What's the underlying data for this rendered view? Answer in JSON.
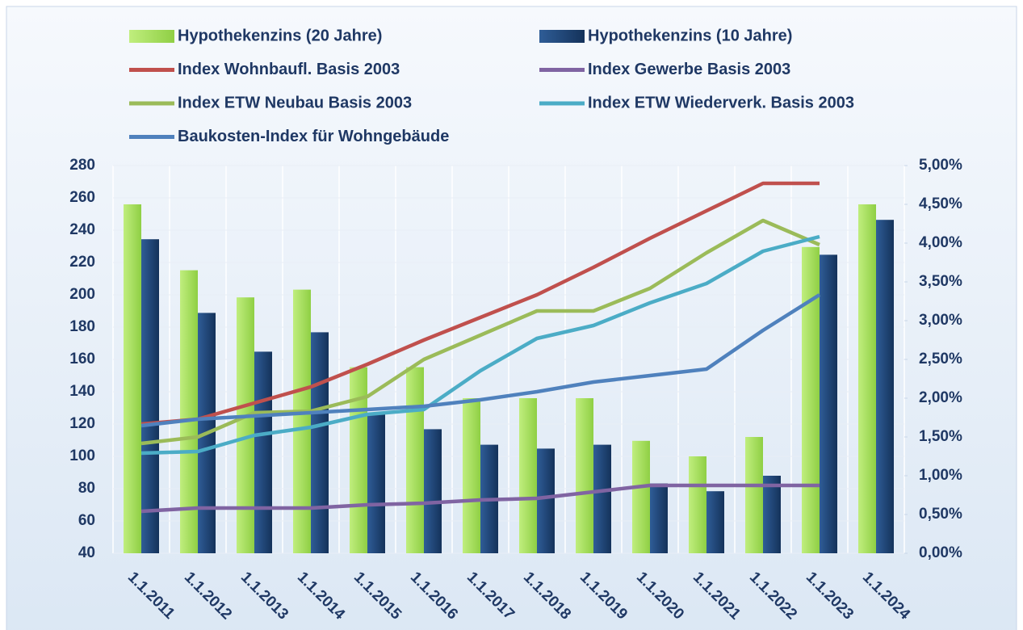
{
  "chart_data": {
    "type": "combo",
    "categories": [
      "1.1.2011",
      "1.1.2012",
      "1.1.2013",
      "1.1.2014",
      "1.1.2015",
      "1.1.2016",
      "1.1.2017",
      "1.1.2018",
      "1.1.2019",
      "1.1.2020",
      "1.1.2021",
      "1.1.2022",
      "1.1.2023",
      "1.1.2024"
    ],
    "series": [
      {
        "name": "Hypothekenzins (20 Jahre)",
        "type": "bar",
        "axis": "y2",
        "color": "#a2dc58",
        "values": [
          4.5,
          3.65,
          3.3,
          3.4,
          2.4,
          2.4,
          2.0,
          2.0,
          2.0,
          1.45,
          1.25,
          1.5,
          3.95,
          4.5
        ]
      },
      {
        "name": "Hypothekenzins (10 Jahre)",
        "type": "bar",
        "axis": "y2",
        "color": "#1f4478",
        "values": [
          4.05,
          3.1,
          2.6,
          2.85,
          1.8,
          1.6,
          1.4,
          1.35,
          1.4,
          0.9,
          0.8,
          1.0,
          3.85,
          4.3
        ]
      },
      {
        "name": "Index Wohnbaufl. Basis 2003",
        "type": "line",
        "color": "#c0504d",
        "values": [
          120,
          123,
          133,
          143,
          157,
          172,
          186,
          200,
          217,
          235,
          252,
          269,
          269,
          null
        ]
      },
      {
        "name": "Index Gewerbe Basis 2003",
        "type": "line",
        "color": "#8064a2",
        "values": [
          66,
          68,
          68,
          68,
          70,
          71,
          73,
          74,
          78,
          82,
          82,
          82,
          82,
          null
        ]
      },
      {
        "name": "Index  ETW Neubau Basis 2003",
        "type": "line",
        "color": "#9bbb59",
        "values": [
          108,
          112,
          127,
          128,
          137,
          160,
          175,
          190,
          190,
          204,
          226,
          246,
          231,
          null
        ]
      },
      {
        "name": "Index ETW Wiederverk. Basis 2003",
        "type": "line",
        "color": "#4bacc6",
        "values": [
          102,
          103,
          113,
          118,
          126,
          129,
          153,
          173,
          181,
          195,
          207,
          227,
          236,
          null
        ]
      },
      {
        "name": "Baukosten-Index für Wohngebäude",
        "type": "line",
        "color": "#4f81bd",
        "values": [
          119,
          123,
          125,
          127,
          129,
          131,
          135,
          140,
          146,
          150,
          154,
          178,
          200,
          null
        ]
      }
    ],
    "ylim": [
      40,
      280
    ],
    "yticks": [
      40,
      60,
      80,
      100,
      120,
      140,
      160,
      180,
      200,
      220,
      240,
      260,
      280
    ],
    "y2lim": [
      0,
      5
    ],
    "y2ticks": [
      {
        "value": 0,
        "label": "0,00%"
      },
      {
        "value": 0.5,
        "label": "0,50%"
      },
      {
        "value": 1,
        "label": "1,00%"
      },
      {
        "value": 1.5,
        "label": "1,50%"
      },
      {
        "value": 2,
        "label": "2,00%"
      },
      {
        "value": 2.5,
        "label": "2,50%"
      },
      {
        "value": 3,
        "label": "3,00%"
      },
      {
        "value": 3.5,
        "label": "3,50%"
      },
      {
        "value": 4,
        "label": "4,00%"
      },
      {
        "value": 4.5,
        "label": "4,50%"
      },
      {
        "value": 5,
        "label": "5,00%"
      }
    ],
    "grid": true
  }
}
